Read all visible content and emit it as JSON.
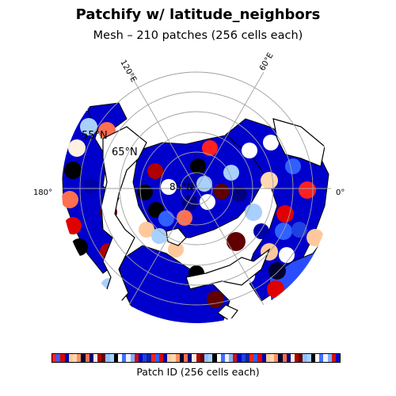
{
  "title": "Patchify w/ latitude_neighbors",
  "subtitle": "Mesh – 210 patches (256 cells each)",
  "map": {
    "projection": "north-polar-stereographic",
    "longitude_labels": [
      "120°E",
      "60°E",
      "180°",
      "0°"
    ],
    "latitude_labels": [
      "55°N",
      "65°N",
      "85°N"
    ],
    "graticule_color": "#a0a0a0",
    "coastline_color": "#000000",
    "ocean_color": "#0000cc"
  },
  "colorbar": {
    "label": "Patch ID (256 cells each)",
    "colors": [
      "#ff2020",
      "#000030",
      "#a8d0ff",
      "#0000cc",
      "#ffc89a",
      "#b00000",
      "#f0f0ff",
      "#3060ff",
      "#ff7050",
      "#000000",
      "#2040e0",
      "#ffd8b0",
      "#600000",
      "#80b0ff",
      "#e00000",
      "#000080",
      "#ffffff",
      "#1020a0",
      "#ff9060",
      "#90c0ff",
      "#d01010",
      "#0000aa",
      "#fff0e0",
      "#4070ff"
    ]
  }
}
